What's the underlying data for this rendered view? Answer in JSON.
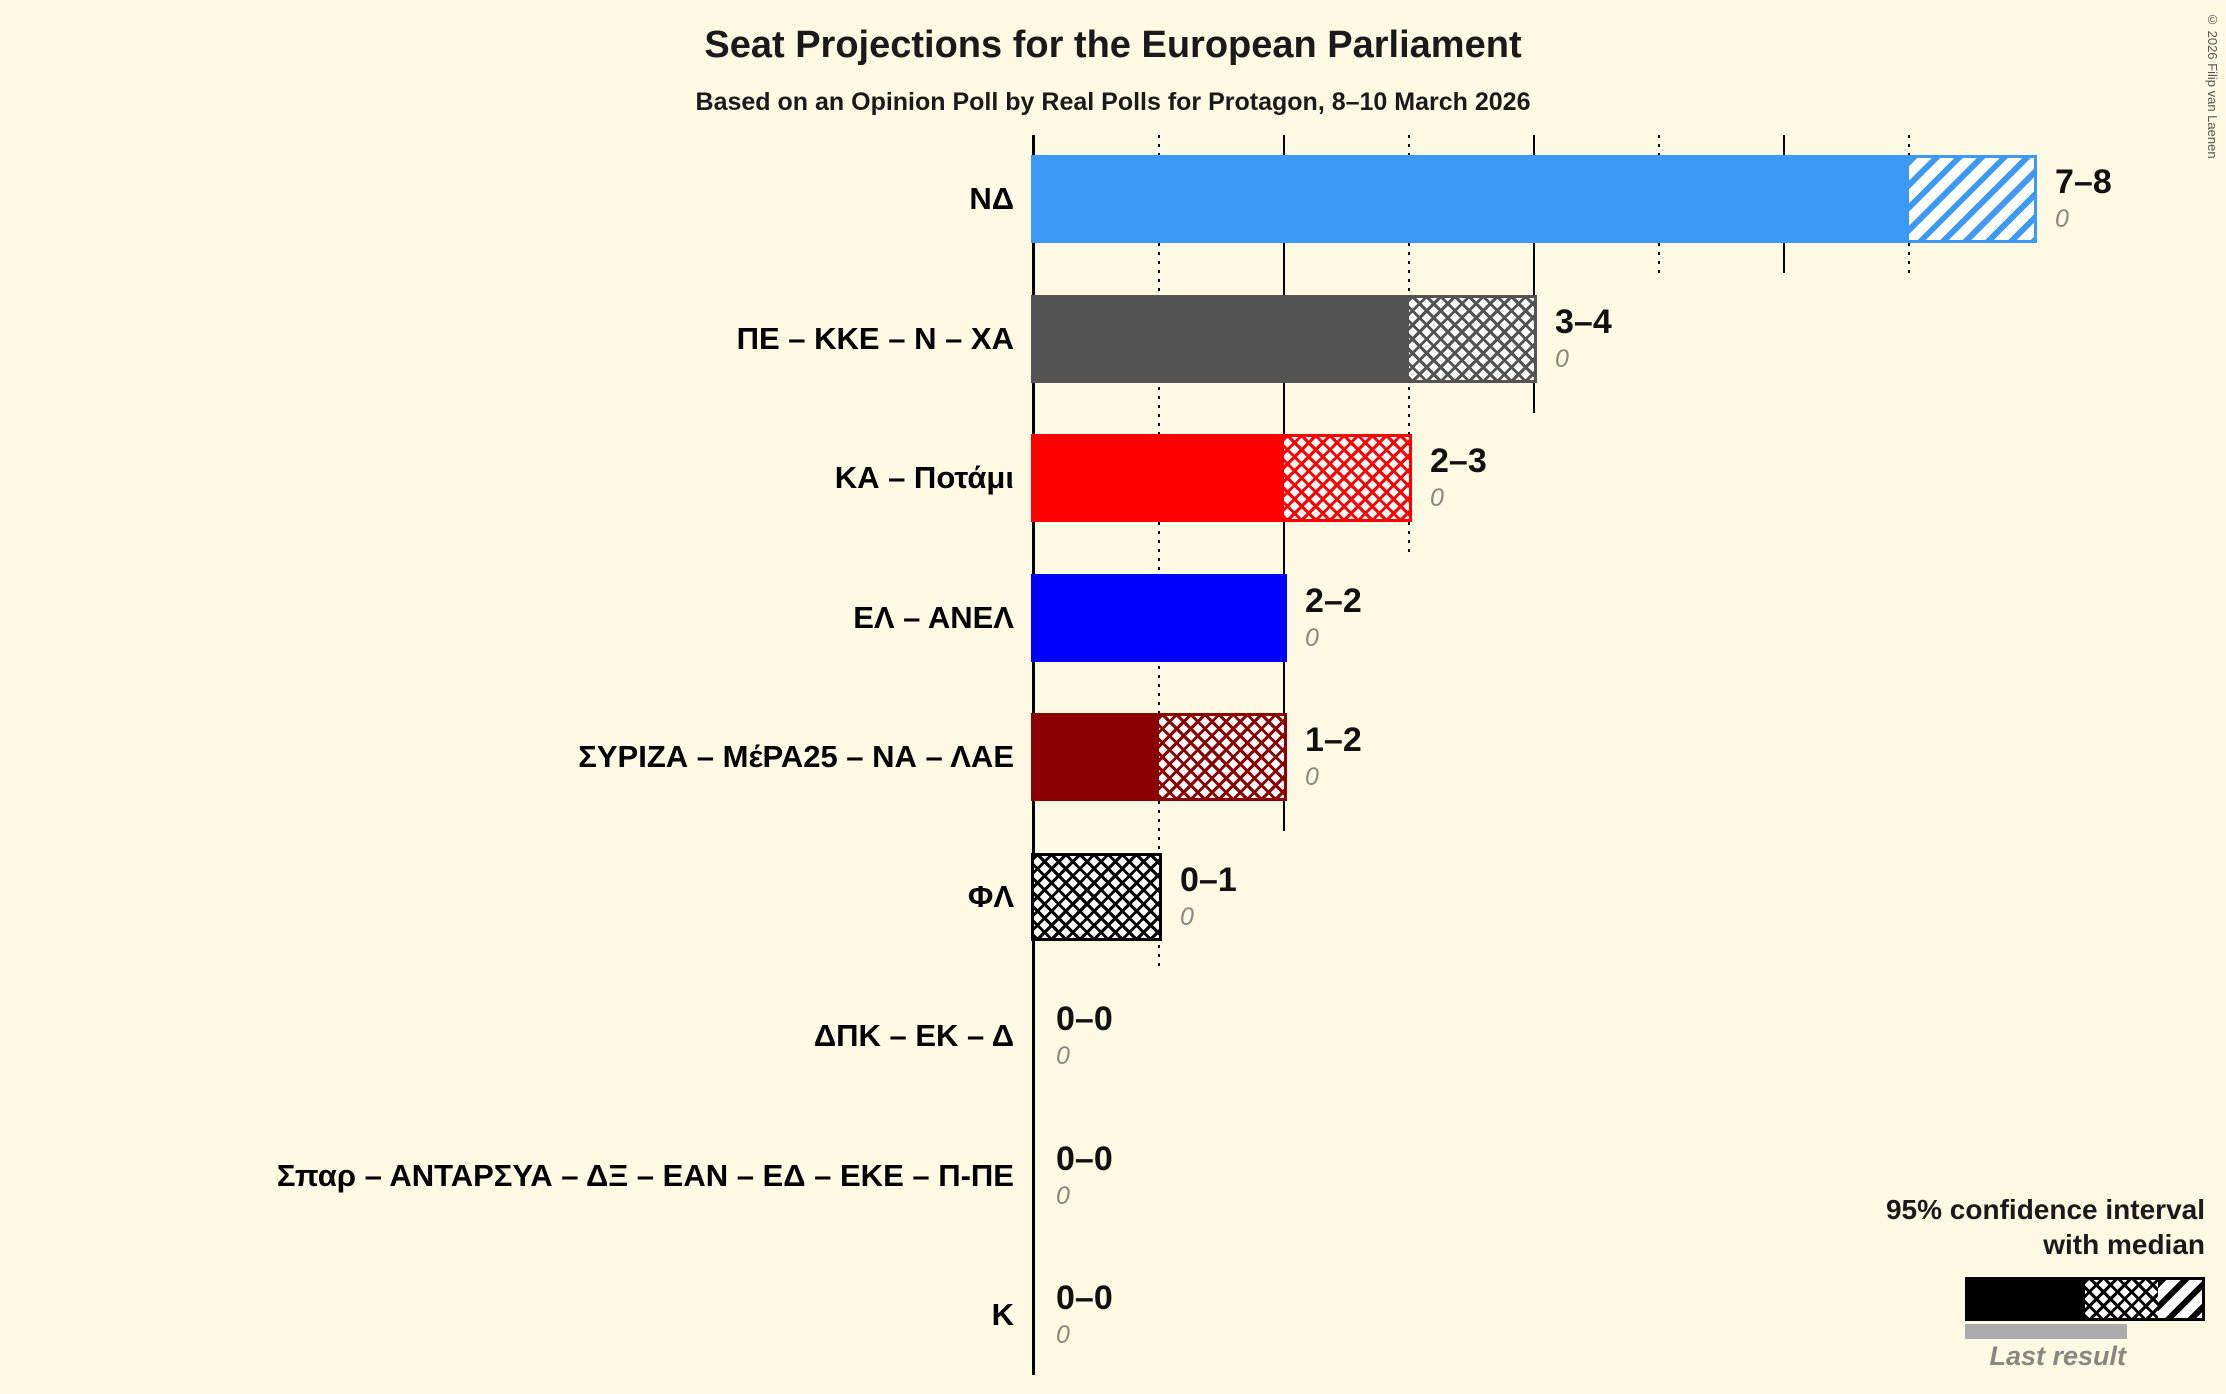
{
  "title": "Seat Projections for the European Parliament",
  "subtitle": "Based on an Opinion Poll by Real Polls for Protagon, 8–10 March 2026",
  "copyright": "© 2026 Filip van Laenen",
  "legend": {
    "ci_line1": "95% confidence interval",
    "ci_line2": "with median",
    "last_result": "Last result"
  },
  "chart_data": {
    "type": "bar",
    "orientation": "horizontal",
    "title": "Seat Projections for the European Parliament",
    "subtitle": "Based on an Opinion Poll by Real Polls for Protagon, 8–10 March 2026",
    "x_axis": {
      "min": 0,
      "max": 8,
      "gridline_interval": 1,
      "solid_gridline_every": 2
    },
    "legend_position": "bottom-right",
    "rows": [
      {
        "label": "ΝΔ",
        "low": 7,
        "median": 7,
        "high": 8,
        "range": "7–8",
        "last_result": "0",
        "color": "#3C9AF5"
      },
      {
        "label": "ΠΕ – ΚΚΕ – Ν – ΧΑ",
        "low": 3,
        "median": 4,
        "high": 4,
        "range": "3–4",
        "last_result": "0",
        "color": "#535353"
      },
      {
        "label": "ΚΑ – Ποτάμι",
        "low": 2,
        "median": 3,
        "high": 3,
        "range": "2–3",
        "last_result": "0",
        "color": "#FF0000"
      },
      {
        "label": "ΕΛ – ΑΝΕΛ",
        "low": 2,
        "median": 2,
        "high": 2,
        "range": "2–2",
        "last_result": "0",
        "color": "#0000FF"
      },
      {
        "label": "ΣΥΡΙΖΑ – ΜέΡΑ25 – ΝΑ – ΛΑΕ",
        "low": 1,
        "median": 2,
        "high": 2,
        "range": "1–2",
        "last_result": "0",
        "color": "#8B0000"
      },
      {
        "label": "ΦΛ",
        "low": 0,
        "median": 1,
        "high": 1,
        "range": "0–1",
        "last_result": "0",
        "color": "#000000"
      },
      {
        "label": "ΔΠΚ – ΕΚ – Δ",
        "low": 0,
        "median": 0,
        "high": 0,
        "range": "0–0",
        "last_result": "0",
        "color": "#000000"
      },
      {
        "label": "Σπαρ – ΑΝΤΑΡΣΥΑ – ΔΞ – ΕΑΝ – ΕΔ – ΕΚΕ – Π-ΠΕ",
        "low": 0,
        "median": 0,
        "high": 0,
        "range": "0–0",
        "last_result": "0",
        "color": "#000000"
      },
      {
        "label": "Κ",
        "low": 0,
        "median": 0,
        "high": 0,
        "range": "0–0",
        "last_result": "0",
        "color": "#000000"
      }
    ]
  }
}
